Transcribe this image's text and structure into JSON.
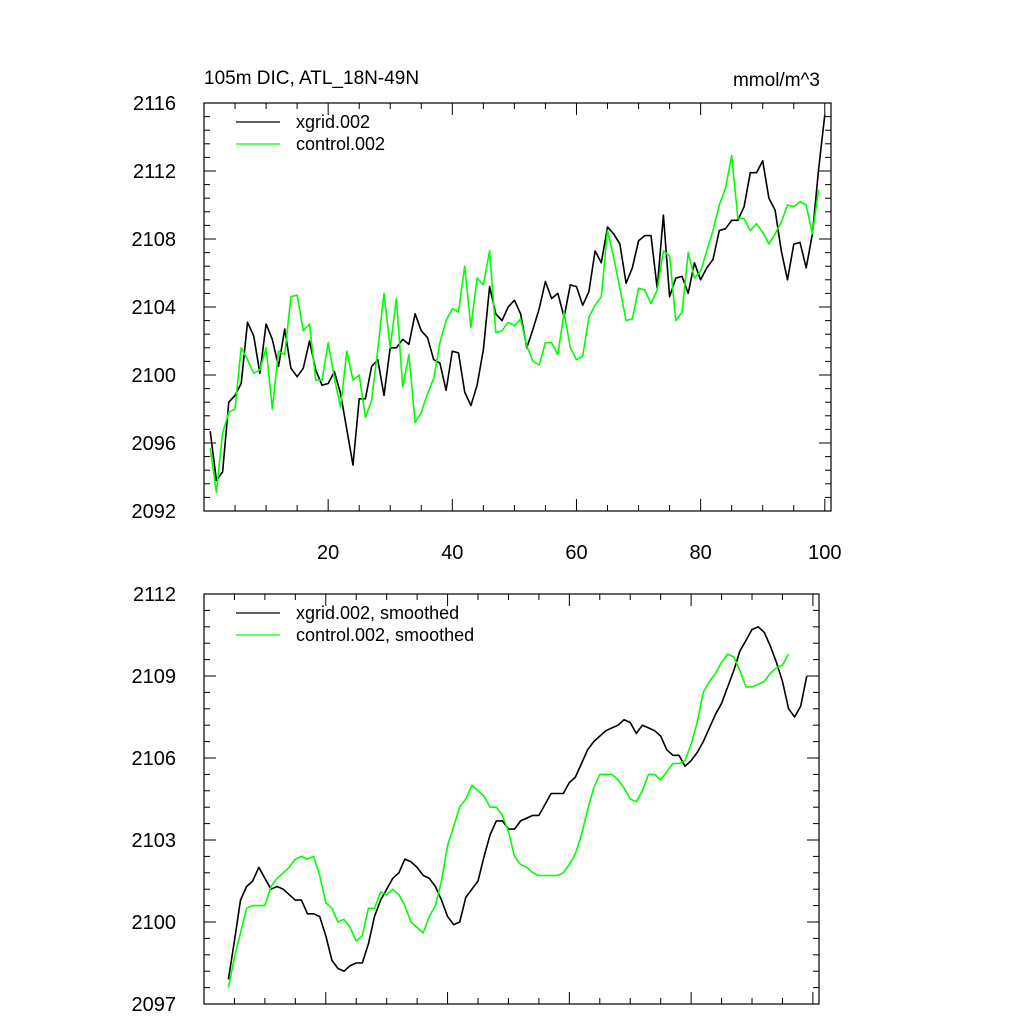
{
  "top": {
    "title_left": "105m DIC, ATL_18N-49N",
    "title_right": "mmol/m^3",
    "chart_data": {
      "type": "line",
      "title": "105m DIC, ATL_18N-49N",
      "units": "mmol/m^3",
      "xlim": [
        0,
        101
      ],
      "ylim": [
        2092,
        2116
      ],
      "x_ticks": [
        20,
        40,
        60,
        80,
        100
      ],
      "y_ticks": [
        2092,
        2096,
        2100,
        2104,
        2108,
        2112,
        2116
      ],
      "legend_position": "top-left",
      "series": [
        {
          "name": "xgrid.002",
          "color": "#000000",
          "x_start": 1,
          "values": [
            2096.7,
            2093.8,
            2094.3,
            2098.4,
            2098.8,
            2099.5,
            2103.1,
            2102.3,
            2100.1,
            2103.0,
            2102.1,
            2100.5,
            2102.7,
            2100.4,
            2099.9,
            2100.4,
            2102.0,
            2100.3,
            2099.4,
            2099.5,
            2100.2,
            2098.9,
            2096.8,
            2094.7,
            2098.6,
            2098.6,
            2100.5,
            2100.9,
            2098.8,
            2101.6,
            2101.6,
            2102.1,
            2101.8,
            2103.6,
            2102.6,
            2102.2,
            2100.9,
            2100.7,
            2099.1,
            2101.4,
            2101.3,
            2099.0,
            2098.2,
            2099.4,
            2101.5,
            2105.2,
            2103.6,
            2103.2,
            2104.0,
            2104.4,
            2103.6,
            2101.6,
            2102.7,
            2103.9,
            2105.5,
            2104.5,
            2104.8,
            2103.4,
            2105.3,
            2105.2,
            2104.1,
            2104.9,
            2107.3,
            2106.6,
            2108.7,
            2108.3,
            2107.7,
            2105.4,
            2106.3,
            2107.9,
            2108.2,
            2108.2,
            2105.1,
            2109.4,
            2104.6,
            2105.7,
            2105.8,
            2104.8,
            2106.6,
            2105.6,
            2106.3,
            2106.8,
            2108.5,
            2108.6,
            2109.1,
            2109.1,
            2109.9,
            2111.9,
            2111.9,
            2112.6,
            2110.4,
            2109.7,
            2107.3,
            2105.6,
            2107.7,
            2107.8,
            2106.3,
            2108.3,
            2112.1,
            2115.3
          ]
        },
        {
          "name": "control.002",
          "color": "#00ff00",
          "x_start": 1,
          "values": [
            2095.7,
            2093.1,
            2096.6,
            2097.8,
            2098.0,
            2101.6,
            2100.9,
            2100.1,
            2100.3,
            2101.6,
            2098.0,
            2101.4,
            2101.2,
            2104.6,
            2104.7,
            2102.6,
            2103.0,
            2099.7,
            2099.7,
            2101.9,
            2099.8,
            2098.1,
            2101.4,
            2099.7,
            2100.0,
            2097.5,
            2098.5,
            2101.5,
            2104.8,
            2101.6,
            2104.5,
            2099.3,
            2101.2,
            2097.2,
            2097.8,
            2098.9,
            2099.8,
            2101.9,
            2103.2,
            2103.9,
            2103.7,
            2106.4,
            2102.8,
            2105.7,
            2105.3,
            2107.3,
            2102.5,
            2102.6,
            2103.1,
            2102.9,
            2103.3,
            2101.7,
            2100.8,
            2100.6,
            2101.9,
            2101.9,
            2101.2,
            2103.7,
            2101.6,
            2100.9,
            2101.1,
            2103.4,
            2104.1,
            2104.6,
            2108.5,
            2106.9,
            2105.1,
            2103.2,
            2103.3,
            2105.1,
            2105.0,
            2104.2,
            2105.0,
            2107.3,
            2107.0,
            2103.2,
            2103.7,
            2107.2,
            2105.7,
            2106.1,
            2107.3,
            2108.5,
            2110.0,
            2111.0,
            2112.9,
            2109.2,
            2109.2,
            2108.5,
            2108.9,
            2108.4,
            2107.7,
            2108.3,
            2109.0,
            2110.0,
            2109.9,
            2110.2,
            2110.0,
            2108.3,
            2110.9
          ]
        }
      ]
    }
  },
  "bottom": {
    "chart_data": {
      "type": "line",
      "xlim": [
        0,
        101
      ],
      "ylim": [
        2097,
        2112
      ],
      "x_ticks": [
        20,
        40,
        60,
        80,
        100
      ],
      "y_ticks": [
        2097,
        2100,
        2103,
        2106,
        2109,
        2112
      ],
      "legend_position": "top-left",
      "series": [
        {
          "name": "xgrid.002, smoothed",
          "color": "#000000",
          "x_start": 4,
          "values": [
            2097.9,
            2099.3,
            2100.8,
            2101.3,
            2101.5,
            2102.0,
            2101.6,
            2101.2,
            2101.3,
            2101.2,
            2101.0,
            2100.8,
            2100.8,
            2100.3,
            2100.3,
            2100.2,
            2099.5,
            2098.6,
            2098.3,
            2098.2,
            2098.4,
            2098.5,
            2098.5,
            2099.2,
            2100.2,
            2100.8,
            2101.2,
            2101.6,
            2101.8,
            2102.3,
            2102.2,
            2102.0,
            2101.7,
            2101.6,
            2101.3,
            2100.8,
            2100.2,
            2099.9,
            2100.0,
            2100.9,
            2101.2,
            2101.5,
            2102.4,
            2103.2,
            2103.7,
            2103.7,
            2103.4,
            2103.4,
            2103.7,
            2103.8,
            2103.9,
            2103.9,
            2104.3,
            2104.7,
            2104.7,
            2104.7,
            2105.1,
            2105.3,
            2105.8,
            2106.3,
            2106.6,
            2106.8,
            2107.0,
            2107.1,
            2107.2,
            2107.4,
            2107.3,
            2106.9,
            2107.2,
            2107.1,
            2107.0,
            2106.8,
            2106.3,
            2106.1,
            2106.1,
            2105.7,
            2105.9,
            2106.2,
            2106.6,
            2107.1,
            2107.6,
            2108.0,
            2108.6,
            2109.2,
            2109.9,
            2110.3,
            2110.7,
            2110.8,
            2110.6,
            2110.1,
            2109.5,
            2108.8,
            2107.8,
            2107.5,
            2107.9,
            2109.0
          ]
        },
        {
          "name": "control.002, smoothed",
          "color": "#00ff00",
          "x_start": 4,
          "values": [
            2097.6,
            2098.7,
            2099.6,
            2100.5,
            2100.6,
            2100.6,
            2100.6,
            2101.3,
            2101.6,
            2101.8,
            2102.0,
            2102.3,
            2102.4,
            2102.3,
            2102.4,
            2101.7,
            2100.7,
            2100.5,
            2100.0,
            2100.1,
            2099.8,
            2099.3,
            2099.5,
            2100.5,
            2100.5,
            2101.1,
            2101.0,
            2101.2,
            2101.0,
            2100.6,
            2100.0,
            2099.8,
            2099.6,
            2100.2,
            2100.6,
            2101.5,
            2102.8,
            2103.5,
            2104.2,
            2104.5,
            2105.0,
            2104.8,
            2104.6,
            2104.2,
            2104.2,
            2103.9,
            2103.3,
            2102.4,
            2102.1,
            2102.0,
            2101.8,
            2101.7,
            2101.7,
            2101.7,
            2101.7,
            2101.8,
            2102.1,
            2102.5,
            2103.2,
            2104.1,
            2104.9,
            2105.4,
            2105.4,
            2105.4,
            2105.2,
            2104.9,
            2104.5,
            2104.4,
            2104.8,
            2105.4,
            2105.4,
            2105.2,
            2105.5,
            2105.8,
            2105.8,
            2105.9,
            2106.5,
            2107.3,
            2108.4,
            2108.8,
            2109.1,
            2109.5,
            2109.8,
            2109.7,
            2109.2,
            2108.6,
            2108.6,
            2108.7,
            2108.8,
            2109.1,
            2109.3,
            2109.4,
            2109.8
          ]
        }
      ]
    }
  }
}
